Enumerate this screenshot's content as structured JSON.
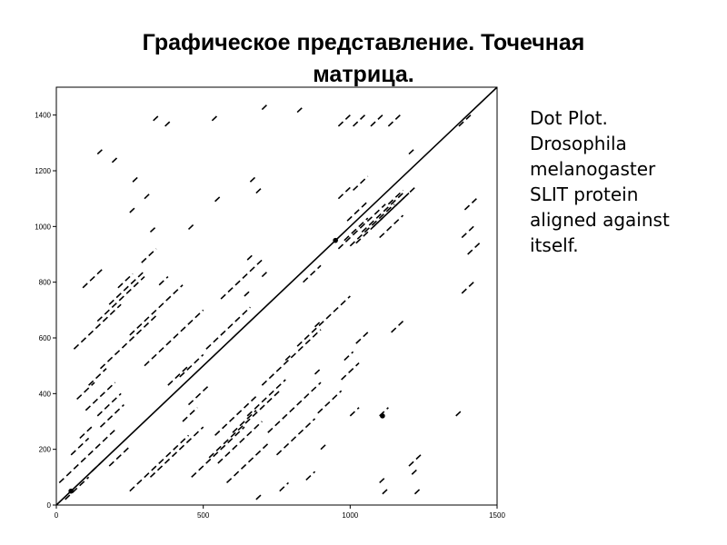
{
  "title": {
    "line1": "Графическое представление. Точечная",
    "line2": "матрица."
  },
  "caption": {
    "lines": [
      "Dot Plot.",
      "Drosophila",
      "melanogaster",
      "SLIT protein",
      "aligned against",
      "itself."
    ]
  },
  "chart_data": {
    "type": "scatter",
    "title": "",
    "xlabel": "",
    "ylabel": "",
    "xlim": [
      0,
      1500
    ],
    "ylim": [
      0,
      1500
    ],
    "x_ticks": [
      0,
      500,
      1000,
      1500
    ],
    "y_ticks": [
      0,
      200,
      400,
      600,
      800,
      1000,
      1200,
      1400
    ],
    "grid": false,
    "main_diagonal": {
      "x": [
        0,
        1500
      ],
      "y": [
        0,
        1500
      ]
    },
    "segments": [
      [
        10,
        80,
        200,
        270
      ],
      [
        80,
        240,
        120,
        280
      ],
      [
        150,
        280,
        230,
        360
      ],
      [
        150,
        490,
        340,
        680
      ],
      [
        60,
        560,
        220,
        720
      ],
      [
        140,
        660,
        300,
        820
      ],
      [
        180,
        720,
        300,
        840
      ],
      [
        250,
        610,
        430,
        790
      ],
      [
        300,
        500,
        500,
        700
      ],
      [
        70,
        380,
        130,
        440
      ],
      [
        110,
        430,
        170,
        490
      ],
      [
        90,
        780,
        160,
        850
      ],
      [
        210,
        780,
        260,
        830
      ],
      [
        290,
        870,
        340,
        920
      ],
      [
        510,
        560,
        660,
        710
      ],
      [
        560,
        740,
        700,
        880
      ],
      [
        540,
        250,
        680,
        390
      ],
      [
        600,
        260,
        680,
        340
      ],
      [
        650,
        320,
        780,
        450
      ],
      [
        700,
        430,
        900,
        630
      ],
      [
        820,
        570,
        1000,
        750
      ],
      [
        840,
        800,
        900,
        860
      ],
      [
        250,
        50,
        450,
        250
      ],
      [
        320,
        100,
        500,
        280
      ],
      [
        460,
        100,
        640,
        280
      ],
      [
        520,
        170,
        760,
        410
      ],
      [
        550,
        150,
        700,
        300
      ],
      [
        580,
        80,
        720,
        220
      ],
      [
        720,
        260,
        900,
        440
      ],
      [
        750,
        180,
        880,
        310
      ],
      [
        890,
        330,
        970,
        410
      ],
      [
        970,
        450,
        1030,
        510
      ],
      [
        30,
        20,
        110,
        100
      ],
      [
        50,
        180,
        110,
        240
      ],
      [
        380,
        430,
        450,
        500
      ],
      [
        420,
        460,
        500,
        540
      ],
      [
        450,
        360,
        520,
        430
      ],
      [
        430,
        300,
        480,
        350
      ],
      [
        140,
        320,
        220,
        400
      ],
      [
        100,
        340,
        200,
        440
      ],
      [
        180,
        140,
        250,
        210
      ],
      [
        120,
        120,
        170,
        170
      ],
      [
        1020,
        940,
        1200,
        1120
      ],
      [
        1000,
        930,
        1150,
        1080
      ],
      [
        960,
        920,
        1120,
        1080
      ],
      [
        980,
        950,
        1060,
        1030
      ],
      [
        1040,
        980,
        1180,
        1120
      ],
      [
        1080,
        1000,
        1220,
        1140
      ],
      [
        1100,
        960,
        1180,
        1040
      ],
      [
        990,
        1020,
        1060,
        1090
      ],
      [
        1130,
        1080,
        1180,
        1130
      ],
      [
        960,
        1360,
        1000,
        1400
      ],
      [
        1010,
        1360,
        1050,
        1400
      ],
      [
        1070,
        1360,
        1110,
        1400
      ],
      [
        1130,
        1360,
        1170,
        1400
      ],
      [
        1370,
        1360,
        1410,
        1400
      ],
      [
        1390,
        1060,
        1430,
        1100
      ],
      [
        1380,
        960,
        1420,
        1000
      ],
      [
        1400,
        900,
        1440,
        940
      ],
      [
        1380,
        760,
        1420,
        800
      ],
      [
        1360,
        320,
        1380,
        340
      ],
      [
        1140,
        620,
        1180,
        660
      ],
      [
        1020,
        580,
        1060,
        620
      ],
      [
        980,
        520,
        1010,
        550
      ],
      [
        1200,
        140,
        1240,
        180
      ],
      [
        1210,
        110,
        1230,
        130
      ],
      [
        1220,
        40,
        1240,
        60
      ],
      [
        1100,
        320,
        1130,
        350
      ],
      [
        1000,
        320,
        1030,
        350
      ],
      [
        960,
        1100,
        1000,
        1140
      ],
      [
        1010,
        1130,
        1060,
        1180
      ],
      [
        1200,
        1260,
        1220,
        1280
      ],
      [
        330,
        1380,
        350,
        1400
      ],
      [
        370,
        1360,
        390,
        1380
      ],
      [
        530,
        1380,
        550,
        1400
      ],
      [
        700,
        1420,
        720,
        1440
      ],
      [
        820,
        1410,
        840,
        1430
      ],
      [
        660,
        1160,
        680,
        1180
      ],
      [
        680,
        1120,
        700,
        1140
      ],
      [
        540,
        1090,
        560,
        1110
      ],
      [
        450,
        990,
        470,
        1010
      ],
      [
        140,
        1260,
        160,
        1280
      ],
      [
        190,
        1230,
        210,
        1250
      ],
      [
        260,
        1160,
        280,
        1180
      ],
      [
        250,
        1050,
        270,
        1070
      ],
      [
        300,
        1100,
        320,
        1120
      ],
      [
        320,
        980,
        340,
        1000
      ],
      [
        350,
        790,
        380,
        820
      ],
      [
        640,
        750,
        660,
        770
      ],
      [
        650,
        880,
        670,
        900
      ],
      [
        700,
        820,
        720,
        840
      ],
      [
        880,
        640,
        900,
        660
      ],
      [
        780,
        520,
        800,
        540
      ],
      [
        880,
        470,
        900,
        490
      ],
      [
        1100,
        80,
        1120,
        100
      ],
      [
        1110,
        40,
        1130,
        60
      ],
      [
        900,
        200,
        920,
        220
      ],
      [
        850,
        90,
        880,
        120
      ],
      [
        760,
        50,
        790,
        80
      ],
      [
        680,
        20,
        700,
        40
      ]
    ],
    "highlight_points": [
      {
        "x": 50,
        "y": 50
      },
      {
        "x": 950,
        "y": 950
      },
      {
        "x": 1110,
        "y": 320
      }
    ]
  }
}
